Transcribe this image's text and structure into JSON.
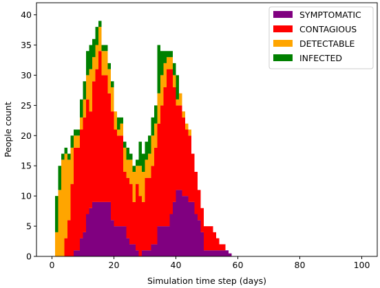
{
  "chart_data": {
    "type": "area",
    "stacked": true,
    "xlabel": "Simulation time step (days)",
    "ylabel": "People count",
    "xlim": [
      -5,
      105
    ],
    "ylim": [
      0,
      42
    ],
    "xticks": [
      0,
      20,
      40,
      60,
      80,
      100
    ],
    "yticks": [
      0,
      5,
      10,
      15,
      20,
      25,
      30,
      35,
      40
    ],
    "legend_position": "top-right",
    "grid": false,
    "x": [
      0,
      1,
      2,
      3,
      4,
      5,
      6,
      7,
      8,
      9,
      10,
      11,
      12,
      13,
      14,
      15,
      16,
      17,
      18,
      19,
      20,
      21,
      22,
      23,
      24,
      25,
      26,
      27,
      28,
      29,
      30,
      31,
      32,
      33,
      34,
      35,
      36,
      37,
      38,
      39,
      40,
      41,
      42,
      43,
      44,
      45,
      46,
      47,
      48,
      49,
      50,
      51,
      52,
      53,
      54,
      55,
      56,
      57,
      58,
      59,
      60,
      61,
      62,
      63,
      64,
      65,
      66,
      67,
      68,
      69,
      70,
      71,
      72,
      73,
      74,
      75,
      76,
      77,
      78,
      79,
      80,
      81,
      82,
      83,
      84,
      85,
      86,
      87,
      88,
      89,
      90,
      91,
      92,
      93,
      94,
      95,
      96,
      97,
      98,
      99,
      100
    ],
    "series": [
      {
        "name": "SYMPTOMATIC",
        "color": "#800080",
        "values": [
          0,
          0,
          0,
          0,
          0,
          0,
          0,
          1,
          1,
          3,
          4,
          7,
          8,
          9,
          9,
          9,
          9,
          9,
          9,
          6,
          5,
          5,
          5,
          5,
          3,
          2,
          2,
          1,
          0,
          1,
          1,
          1,
          2,
          2,
          5,
          5,
          5,
          5,
          7,
          9,
          11,
          11,
          10,
          10,
          9,
          9,
          7,
          6,
          4,
          1,
          1,
          1,
          1,
          1,
          1,
          1,
          1,
          0.5,
          0,
          0,
          0,
          0,
          0,
          0,
          0,
          0,
          0,
          0,
          0,
          0,
          0,
          0,
          0,
          0,
          0,
          0,
          0,
          0,
          0,
          0,
          0,
          0,
          0,
          0,
          0,
          0,
          0,
          0,
          0,
          0,
          0,
          0,
          0,
          0,
          0,
          0,
          0,
          0,
          0,
          0,
          0
        ]
      },
      {
        "name": "CONTAGIOUS",
        "color": "#ff0000",
        "values": [
          0,
          0,
          0,
          0,
          3,
          6,
          12,
          17,
          17,
          18,
          19,
          19,
          16,
          20,
          22,
          25,
          21,
          21,
          18,
          18,
          16,
          15,
          15,
          9,
          10,
          10,
          7,
          11,
          10,
          8,
          12,
          12,
          13,
          16,
          17,
          20,
          23,
          26,
          24,
          19,
          14,
          14,
          13,
          11,
          11,
          8,
          7,
          5,
          4,
          4,
          4,
          4,
          3,
          2,
          1,
          1,
          0,
          0,
          0,
          0,
          0,
          0,
          0,
          0,
          0,
          0,
          0,
          0,
          0,
          0,
          0,
          0,
          0,
          0,
          0,
          0,
          0,
          0,
          0,
          0,
          0,
          0,
          0,
          0,
          0,
          0,
          0,
          0,
          0,
          0,
          0,
          0,
          0,
          0,
          0,
          0,
          0,
          0,
          0,
          0,
          0
        ]
      },
      {
        "name": "DETECTABLE",
        "color": "#ffa500",
        "values": [
          0,
          4,
          11,
          16,
          14,
          10,
          6,
          2,
          2,
          2,
          3,
          4,
          7,
          4,
          4,
          4,
          4,
          4,
          4,
          4,
          3,
          1,
          2,
          4,
          3,
          4,
          5,
          3,
          5,
          5,
          3,
          4,
          5,
          4,
          5,
          5,
          4,
          2,
          2,
          2,
          1,
          2,
          1,
          1,
          1,
          0,
          0,
          0,
          0,
          0,
          0,
          0,
          0,
          0,
          0,
          0,
          0,
          0,
          0,
          0,
          0,
          0,
          0,
          0,
          0,
          0,
          0,
          0,
          0,
          0,
          0,
          0,
          0,
          0,
          0,
          0,
          0,
          0,
          0,
          0,
          0,
          0,
          0,
          0,
          0,
          0,
          0,
          0,
          0,
          0,
          0,
          0,
          0,
          0,
          0,
          0,
          0,
          0,
          0,
          0,
          0
        ]
      },
      {
        "name": "INFECTED",
        "color": "#008000",
        "values": [
          0,
          6,
          4,
          1,
          1,
          1,
          2,
          1,
          1,
          3,
          3,
          4,
          4,
          3,
          3,
          1,
          1,
          1,
          1,
          1,
          0,
          2,
          1,
          1,
          2,
          1,
          1,
          1,
          4,
          3,
          3,
          3,
          3,
          3,
          8,
          4,
          2,
          1,
          1,
          2,
          4,
          0,
          0,
          0,
          0,
          0,
          0,
          0,
          0,
          0,
          0,
          0,
          0,
          0,
          0,
          0,
          0,
          0,
          0,
          0,
          0,
          0,
          0,
          0,
          0,
          0,
          0,
          0,
          0,
          0,
          0,
          0,
          0,
          0,
          0,
          0,
          0,
          0,
          0,
          0,
          0,
          0,
          0,
          0,
          0,
          0,
          0,
          0,
          0,
          0,
          0,
          0,
          0,
          0,
          0,
          0,
          0,
          0,
          0,
          0,
          0
        ]
      }
    ]
  }
}
